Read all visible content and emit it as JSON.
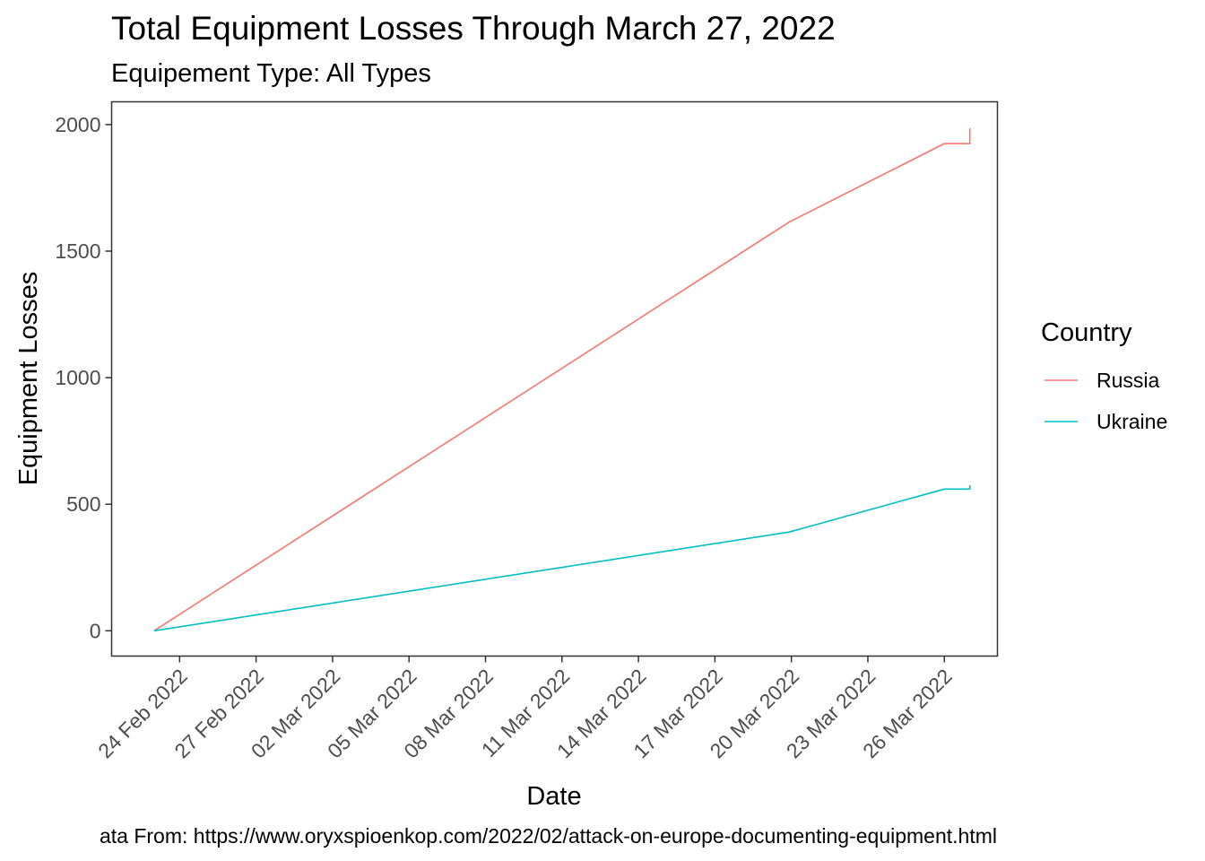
{
  "chart_data": {
    "type": "line",
    "title": "Total Equipment Losses Through March 27, 2022",
    "subtitle": "Equipement Type: All Types",
    "xlabel": "Date",
    "ylabel": "Equipment Losses",
    "caption": "ata From: https://www.oryxspioenkop.com/2022/02/attack-on-europe-documenting-equipment.html",
    "x_ticks": [
      {
        "date": "2022-02-24",
        "label": "24 Feb 2022"
      },
      {
        "date": "2022-02-27",
        "label": "27 Feb 2022"
      },
      {
        "date": "2022-03-02",
        "label": "02 Mar 2022"
      },
      {
        "date": "2022-03-05",
        "label": "05 Mar 2022"
      },
      {
        "date": "2022-03-08",
        "label": "08 Mar 2022"
      },
      {
        "date": "2022-03-11",
        "label": "11 Mar 2022"
      },
      {
        "date": "2022-03-14",
        "label": "14 Mar 2022"
      },
      {
        "date": "2022-03-17",
        "label": "17 Mar 2022"
      },
      {
        "date": "2022-03-20",
        "label": "20 Mar 2022"
      },
      {
        "date": "2022-03-23",
        "label": "23 Mar 2022"
      },
      {
        "date": "2022-03-26",
        "label": "26 Mar 2022"
      }
    ],
    "y_ticks": [
      0,
      500,
      1000,
      1500,
      2000
    ],
    "xlim": [
      "2022-02-21T08:00",
      "2022-03-28T02:00"
    ],
    "ylim": [
      -100,
      2090
    ],
    "grid": false,
    "legend": {
      "title": "Country",
      "position": "right"
    },
    "series": [
      {
        "name": "Russia",
        "color": "#F8766D",
        "points": [
          {
            "x": "2022-02-23T00:00",
            "y": 0
          },
          {
            "x": "2022-03-19T22:00",
            "y": 1615
          },
          {
            "x": "2022-03-26T00:00",
            "y": 1925
          },
          {
            "x": "2022-03-27T00:00",
            "y": 1925
          },
          {
            "x": "2022-03-27T00:00",
            "y": 1985
          }
        ]
      },
      {
        "name": "Ukraine",
        "color": "#00BFC4",
        "points": [
          {
            "x": "2022-02-23T00:00",
            "y": 0
          },
          {
            "x": "2022-03-19T22:00",
            "y": 390
          },
          {
            "x": "2022-03-26T00:00",
            "y": 560
          },
          {
            "x": "2022-03-27T00:00",
            "y": 560
          },
          {
            "x": "2022-03-27T00:00",
            "y": 575
          }
        ]
      }
    ]
  }
}
